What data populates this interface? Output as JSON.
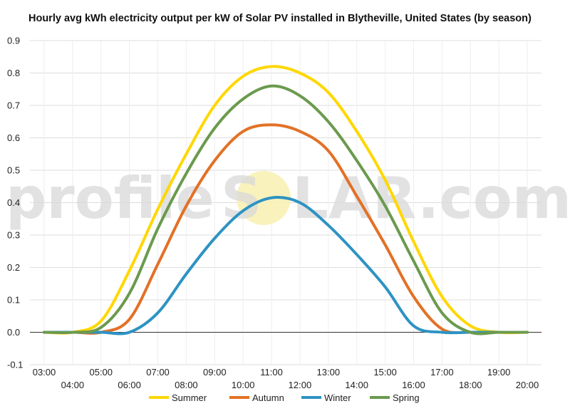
{
  "chart_data": {
    "type": "line",
    "title": "Hourly avg kWh electricity output per kW of Solar PV installed in Blytheville, United States (by season)",
    "x": [
      "03:00",
      "04:00",
      "05:00",
      "06:00",
      "07:00",
      "08:00",
      "09:00",
      "10:00",
      "11:00",
      "12:00",
      "13:00",
      "14:00",
      "15:00",
      "16:00",
      "17:00",
      "18:00",
      "19:00",
      "20:00"
    ],
    "ylim": [
      -0.1,
      0.9
    ],
    "yticks": [
      "-0.1",
      "0.0",
      "0.1",
      "0.2",
      "0.3",
      "0.4",
      "0.5",
      "0.6",
      "0.7",
      "0.8",
      "0.9"
    ],
    "grid": true,
    "legend_position": "bottom",
    "series": [
      {
        "name": "Summer",
        "color": "#FFD700",
        "values": [
          0.0,
          0.0,
          0.035,
          0.19,
          0.38,
          0.55,
          0.7,
          0.79,
          0.82,
          0.8,
          0.74,
          0.62,
          0.47,
          0.28,
          0.11,
          0.02,
          0.0,
          0.0
        ]
      },
      {
        "name": "Autumn",
        "color": "#E27126",
        "values": [
          0.0,
          0.0,
          0.0,
          0.04,
          0.21,
          0.39,
          0.53,
          0.62,
          0.64,
          0.62,
          0.56,
          0.42,
          0.27,
          0.11,
          0.01,
          0.0,
          0.0,
          0.0
        ]
      },
      {
        "name": "Winter",
        "color": "#2D93C3",
        "values": [
          0.0,
          0.0,
          0.0,
          0.0,
          0.06,
          0.18,
          0.29,
          0.375,
          0.415,
          0.4,
          0.33,
          0.24,
          0.14,
          0.02,
          0.0,
          0.0,
          0.0,
          0.0
        ]
      },
      {
        "name": "Spring",
        "color": "#6B9A4E",
        "values": [
          0.0,
          0.0,
          0.015,
          0.12,
          0.32,
          0.49,
          0.63,
          0.72,
          0.76,
          0.73,
          0.65,
          0.53,
          0.39,
          0.22,
          0.06,
          0.0,
          0.0,
          0.0
        ]
      }
    ]
  },
  "watermark": {
    "left": "profile",
    "sun": "S",
    "right": "LAR.com"
  }
}
